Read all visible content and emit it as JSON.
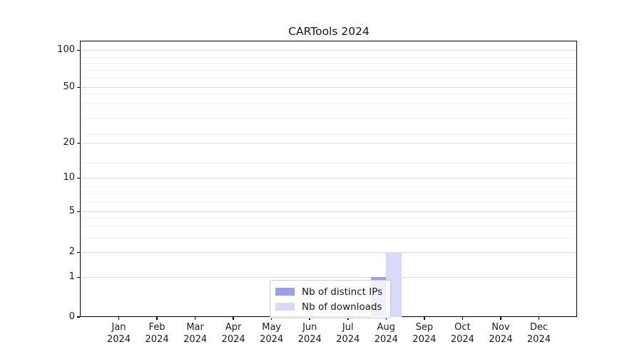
{
  "title": "CARTools 2024",
  "chart_data": {
    "type": "bar",
    "title": "CARTools 2024",
    "categories": [
      "Jan 2024",
      "Feb 2024",
      "Mar 2024",
      "Apr 2024",
      "May 2024",
      "Jun 2024",
      "Jul 2024",
      "Aug 2024",
      "Sep 2024",
      "Oct 2024",
      "Nov 2024",
      "Dec 2024"
    ],
    "series": [
      {
        "name": "Nb of distinct IPs",
        "color": "#9d9df0",
        "values": [
          0,
          0,
          0,
          0,
          0,
          0,
          0,
          1,
          0,
          0,
          0,
          0
        ]
      },
      {
        "name": "Nb of downloads",
        "color": "#d9d9f9",
        "values": [
          0,
          0,
          0,
          0,
          0,
          0,
          0,
          2,
          0,
          0,
          0,
          0
        ]
      }
    ],
    "xlabel": "",
    "ylabel": "",
    "yticks": [
      0,
      1,
      2,
      5,
      10,
      20,
      50,
      100
    ],
    "ylim": [
      0,
      120
    ],
    "yscale": "symlog-like (0,1,2,5,10,20,50,100)",
    "grid": "horizontal major + faint minor",
    "legend_position": "lower center"
  }
}
